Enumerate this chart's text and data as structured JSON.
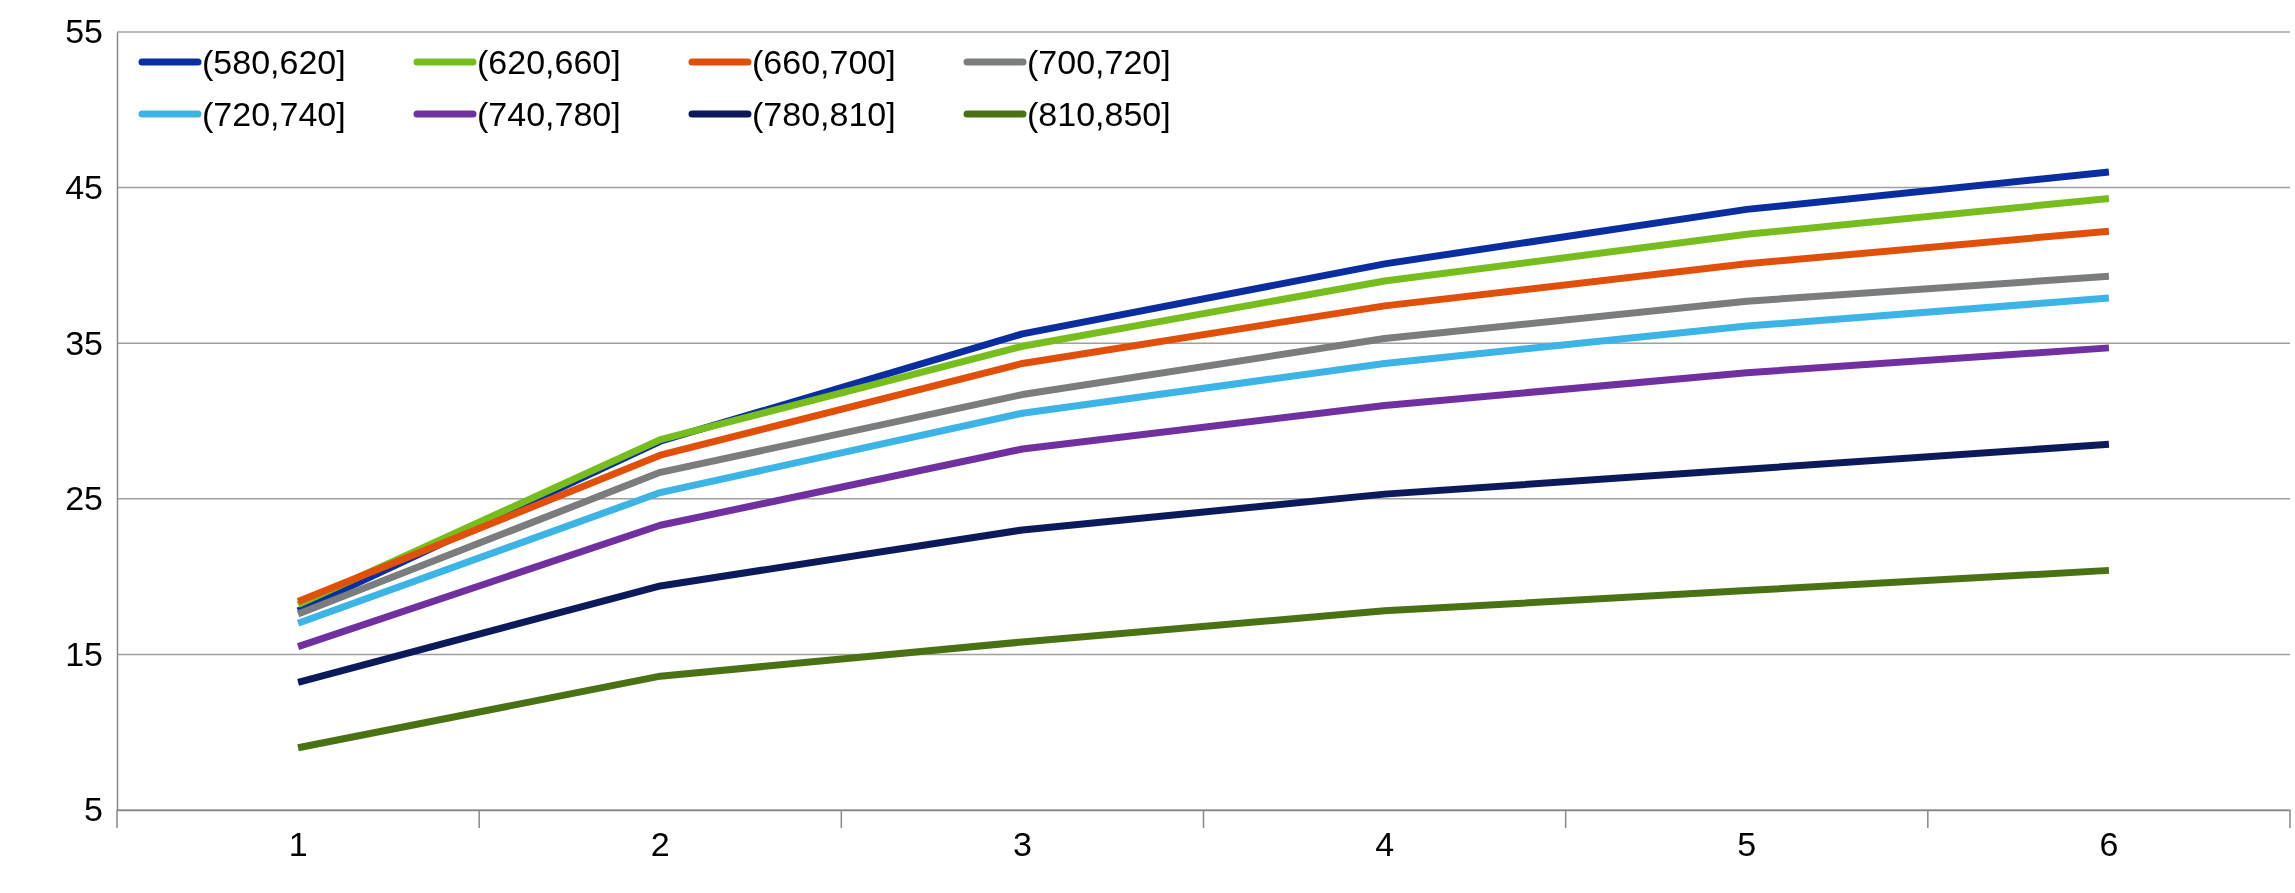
{
  "chart_data": {
    "type": "line",
    "categories": [
      "1",
      "2",
      "3",
      "4",
      "5",
      "6"
    ],
    "ylim": [
      5,
      55
    ],
    "yticks": [
      5,
      15,
      25,
      35,
      45,
      55
    ],
    "grid": "y",
    "legend": "top left",
    "line_style": "solid",
    "marker": "none",
    "series": [
      {
        "name": "(580,620]",
        "color": "#0a2ea0",
        "values": [
          17.8,
          28.7,
          35.6,
          40.1,
          43.6,
          46.0
        ]
      },
      {
        "name": "(620,660]",
        "color": "#78bd1e",
        "values": [
          18.2,
          28.8,
          34.8,
          39.0,
          42.0,
          44.3
        ]
      },
      {
        "name": "(660,700]",
        "color": "#e0500a",
        "values": [
          18.4,
          27.8,
          33.7,
          37.4,
          40.1,
          42.2
        ]
      },
      {
        "name": "(700,720]",
        "color": "#7a7c7e",
        "values": [
          17.6,
          26.7,
          31.7,
          35.3,
          37.7,
          39.3
        ]
      },
      {
        "name": "(720,740]",
        "color": "#3cb4e6",
        "values": [
          17.0,
          25.4,
          30.5,
          33.7,
          36.1,
          37.9
        ]
      },
      {
        "name": "(740,780]",
        "color": "#7030a0",
        "values": [
          15.5,
          23.3,
          28.2,
          31.0,
          33.1,
          34.7
        ]
      },
      {
        "name": "(780,810]",
        "color": "#0c1a5c",
        "values": [
          13.2,
          19.4,
          23.0,
          25.3,
          26.9,
          28.5
        ]
      },
      {
        "name": "(810,850]",
        "color": "#4a7214",
        "values": [
          9.0,
          13.6,
          15.8,
          17.8,
          19.1,
          20.4
        ]
      }
    ]
  }
}
